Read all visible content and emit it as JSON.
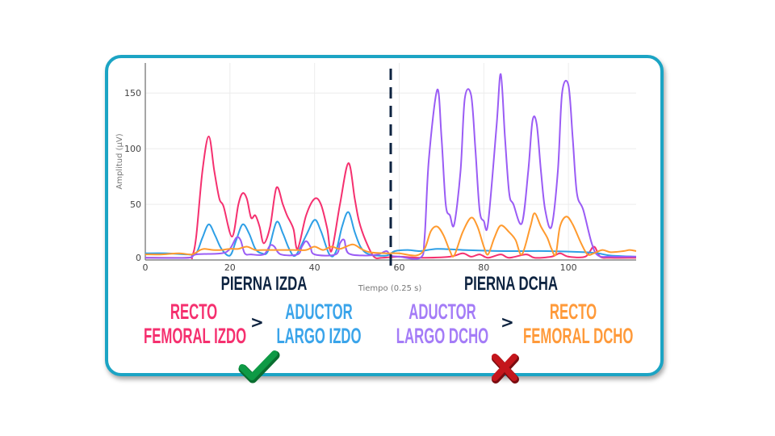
{
  "chart_data": {
    "type": "line",
    "xlabel": "Tiempo (0.25 s)",
    "ylabel": "Amplitud (µV)",
    "xlim": [
      0,
      116
    ],
    "ylim": [
      0,
      177
    ],
    "xticks": [
      0,
      20,
      40,
      60,
      80,
      100
    ],
    "yticks": [
      0,
      50,
      100,
      150
    ],
    "grid": true,
    "divider_x": 58,
    "series": [
      {
        "color": "#f5306f",
        "points": [
          [
            0,
            2
          ],
          [
            10,
            2
          ],
          [
            11,
            3
          ],
          [
            12,
            20
          ],
          [
            13.5,
            80
          ],
          [
            15,
            111
          ],
          [
            16.3,
            80
          ],
          [
            17.5,
            55
          ],
          [
            18.5,
            48
          ],
          [
            20.5,
            21
          ],
          [
            22,
            50
          ],
          [
            23,
            60
          ],
          [
            24,
            55
          ],
          [
            25,
            38
          ],
          [
            26,
            40
          ],
          [
            27,
            30
          ],
          [
            28,
            15
          ],
          [
            29.5,
            30
          ],
          [
            31,
            65
          ],
          [
            32.5,
            50
          ],
          [
            33.5,
            40
          ],
          [
            35,
            28
          ],
          [
            36,
            10
          ],
          [
            38,
            40
          ],
          [
            40,
            55
          ],
          [
            41.5,
            50
          ],
          [
            43,
            28
          ],
          [
            44,
            8
          ],
          [
            46,
            50
          ],
          [
            48,
            87
          ],
          [
            49.5,
            55
          ],
          [
            50.5,
            35
          ],
          [
            52,
            18
          ],
          [
            54,
            3
          ],
          [
            56,
            2
          ],
          [
            60,
            3
          ],
          [
            65,
            2
          ],
          [
            72,
            3
          ],
          [
            75,
            6
          ],
          [
            77,
            3
          ],
          [
            79,
            5
          ],
          [
            81,
            2
          ],
          [
            84,
            5
          ],
          [
            86,
            2
          ],
          [
            90,
            5
          ],
          [
            92,
            2
          ],
          [
            96,
            3
          ],
          [
            98,
            6
          ],
          [
            100,
            3
          ],
          [
            104,
            3
          ],
          [
            106,
            12
          ],
          [
            107.5,
            3
          ],
          [
            110,
            2
          ],
          [
            116,
            2
          ]
        ]
      },
      {
        "color": "#2e9fe6",
        "points": [
          [
            0,
            6
          ],
          [
            5,
            6
          ],
          [
            10,
            5
          ],
          [
            12,
            6
          ],
          [
            13.5,
            20
          ],
          [
            15,
            32
          ],
          [
            16.5,
            22
          ],
          [
            18,
            10
          ],
          [
            20,
            4
          ],
          [
            21.5,
            18
          ],
          [
            23,
            32
          ],
          [
            24.5,
            24
          ],
          [
            26,
            10
          ],
          [
            27.5,
            6
          ],
          [
            29,
            8
          ],
          [
            31,
            34
          ],
          [
            32.5,
            24
          ],
          [
            34,
            10
          ],
          [
            35.5,
            4
          ],
          [
            38,
            22
          ],
          [
            40,
            36
          ],
          [
            41.5,
            26
          ],
          [
            43.5,
            5
          ],
          [
            45,
            7
          ],
          [
            46.5,
            30
          ],
          [
            48,
            43
          ],
          [
            49.5,
            25
          ],
          [
            51,
            11
          ],
          [
            53,
            5
          ],
          [
            57,
            4
          ],
          [
            59,
            8
          ],
          [
            62,
            9
          ],
          [
            65,
            8
          ],
          [
            69,
            10
          ],
          [
            75,
            9
          ],
          [
            85,
            8
          ],
          [
            95,
            8
          ],
          [
            104,
            7
          ],
          [
            107,
            6
          ],
          [
            110,
            4
          ],
          [
            116,
            3
          ]
        ]
      },
      {
        "color": "#9a5cf5",
        "points": [
          [
            0,
            2
          ],
          [
            10,
            2
          ],
          [
            12,
            5
          ],
          [
            18,
            6
          ],
          [
            20,
            10
          ],
          [
            21.5,
            20
          ],
          [
            22.5,
            18
          ],
          [
            23.5,
            6
          ],
          [
            25,
            5
          ],
          [
            28,
            5
          ],
          [
            29.5,
            13
          ],
          [
            30.5,
            12
          ],
          [
            32,
            5
          ],
          [
            36,
            5
          ],
          [
            37,
            12
          ],
          [
            38,
            17
          ],
          [
            39,
            12
          ],
          [
            40,
            5
          ],
          [
            45,
            5
          ],
          [
            46,
            15
          ],
          [
            47,
            18
          ],
          [
            48,
            6
          ],
          [
            52,
            4
          ],
          [
            55,
            5
          ],
          [
            57,
            8
          ],
          [
            58,
            4
          ],
          [
            60,
            3
          ],
          [
            65,
            2
          ],
          [
            66,
            20
          ],
          [
            67,
            90
          ],
          [
            69,
            153
          ],
          [
            70,
            110
          ],
          [
            71,
            50
          ],
          [
            72,
            40
          ],
          [
            73,
            32
          ],
          [
            74.5,
            80
          ],
          [
            75.5,
            145
          ],
          [
            77,
            148
          ],
          [
            78,
            100
          ],
          [
            79,
            45
          ],
          [
            80,
            35
          ],
          [
            81,
            33
          ],
          [
            83,
            120
          ],
          [
            84,
            167
          ],
          [
            85,
            110
          ],
          [
            86,
            60
          ],
          [
            87,
            50
          ],
          [
            89,
            33
          ],
          [
            90.5,
            80
          ],
          [
            91.5,
            125
          ],
          [
            92.5,
            122
          ],
          [
            93.5,
            80
          ],
          [
            94.5,
            45
          ],
          [
            96,
            30
          ],
          [
            97.5,
            80
          ],
          [
            98.5,
            150
          ],
          [
            100,
            157
          ],
          [
            101,
            110
          ],
          [
            102,
            60
          ],
          [
            103.5,
            45
          ],
          [
            105.5,
            15
          ],
          [
            107,
            4
          ],
          [
            110,
            3
          ],
          [
            116,
            3
          ]
        ]
      },
      {
        "color": "#ff9a2e",
        "points": [
          [
            0,
            5
          ],
          [
            4,
            5
          ],
          [
            8,
            6
          ],
          [
            11,
            5
          ],
          [
            13,
            9
          ],
          [
            14,
            10
          ],
          [
            16,
            9
          ],
          [
            18,
            9
          ],
          [
            20,
            10
          ],
          [
            22,
            10
          ],
          [
            24,
            12
          ],
          [
            26,
            9
          ],
          [
            28,
            9
          ],
          [
            32,
            9
          ],
          [
            35,
            9
          ],
          [
            38,
            9
          ],
          [
            40,
            12
          ],
          [
            42,
            9
          ],
          [
            44,
            12
          ],
          [
            46,
            10
          ],
          [
            49,
            14
          ],
          [
            51,
            10
          ],
          [
            53,
            7
          ],
          [
            57,
            6
          ],
          [
            60,
            6
          ],
          [
            64,
            4
          ],
          [
            66,
            10
          ],
          [
            67.5,
            26
          ],
          [
            69,
            30
          ],
          [
            70.5,
            22
          ],
          [
            72,
            8
          ],
          [
            73,
            4
          ],
          [
            75,
            25
          ],
          [
            77,
            38
          ],
          [
            78.5,
            30
          ],
          [
            80,
            12
          ],
          [
            81,
            5
          ],
          [
            82.5,
            20
          ],
          [
            84,
            31
          ],
          [
            86,
            25
          ],
          [
            87.5,
            18
          ],
          [
            89,
            5
          ],
          [
            91,
            30
          ],
          [
            92,
            42
          ],
          [
            93.5,
            30
          ],
          [
            95,
            20
          ],
          [
            96,
            10
          ],
          [
            97,
            5
          ],
          [
            98,
            30
          ],
          [
            99.5,
            39
          ],
          [
            101,
            32
          ],
          [
            103,
            15
          ],
          [
            104.5,
            5
          ],
          [
            106,
            6
          ],
          [
            108,
            9
          ],
          [
            110,
            7
          ],
          [
            113,
            8
          ],
          [
            114.5,
            9
          ],
          [
            116,
            8
          ]
        ]
      }
    ]
  },
  "panels": {
    "left": "PIERNA IZDA",
    "right": "PIERNA DCHA"
  },
  "comparisons": [
    {
      "a": [
        "RECTO",
        "FEMORAL IZDO"
      ],
      "a_color": "#f5306f",
      "op": ">",
      "b": [
        "ADUCTOR",
        "LARGO IZDO"
      ],
      "b_color": "#3aa4ea",
      "result": "check",
      "result_color": "#0e9a45"
    },
    {
      "a": [
        "ADUCTOR",
        "LARGO DCHO"
      ],
      "a_color": "#a47cf7",
      "op": ">",
      "b": [
        "RECTO",
        "FEMORAL DCHO"
      ],
      "b_color": "#ff9a3a",
      "result": "cross",
      "result_color": "#c4161c"
    }
  ]
}
